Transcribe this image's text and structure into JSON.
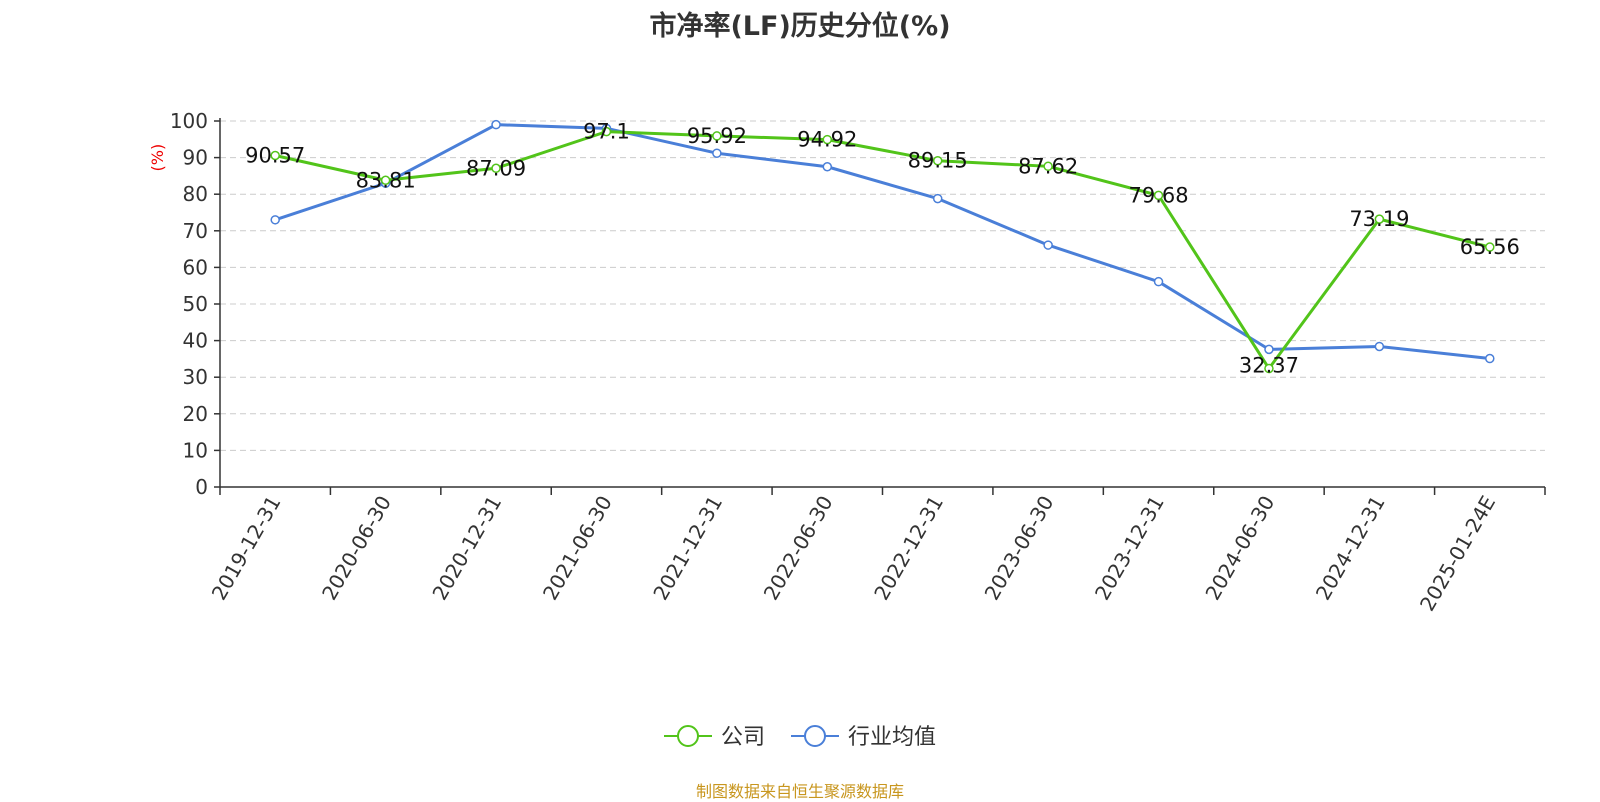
{
  "chart_data": {
    "type": "line",
    "title": "市净率(LF)历史分位(%)",
    "ylabel": "(%)",
    "xlabel": "",
    "ylim": [
      0,
      100
    ],
    "yticks": [
      0,
      10,
      20,
      30,
      40,
      50,
      60,
      70,
      80,
      90,
      100
    ],
    "grid": "horizontal-dashed",
    "legend_position": "bottom-center",
    "categories": [
      "2019-12-31",
      "2020-06-30",
      "2020-12-31",
      "2021-06-30",
      "2021-12-31",
      "2022-06-30",
      "2022-12-31",
      "2023-06-30",
      "2023-12-31",
      "2024-06-30",
      "2024-12-31",
      "2025-01-24E"
    ],
    "series": [
      {
        "name": "公司",
        "color": "#52c41a",
        "values": [
          90.57,
          83.81,
          87.09,
          97.1,
          95.92,
          94.92,
          89.15,
          87.62,
          79.68,
          32.37,
          73.19,
          65.56
        ],
        "labels": [
          "90.57",
          "83.81",
          "87.09",
          "97.1",
          "95.92",
          "94.92",
          "89.15",
          "87.62",
          "79.68",
          "32.37",
          "73.19",
          "65.56"
        ]
      },
      {
        "name": "行业均值",
        "color": "#4a7fd8",
        "values": [
          73,
          83,
          99,
          98,
          91.2,
          87.5,
          78.8,
          66.1,
          56.1,
          37.6,
          38.4,
          35.1
        ]
      }
    ]
  },
  "footer": {
    "source": "制图数据来自恒生聚源数据库"
  }
}
